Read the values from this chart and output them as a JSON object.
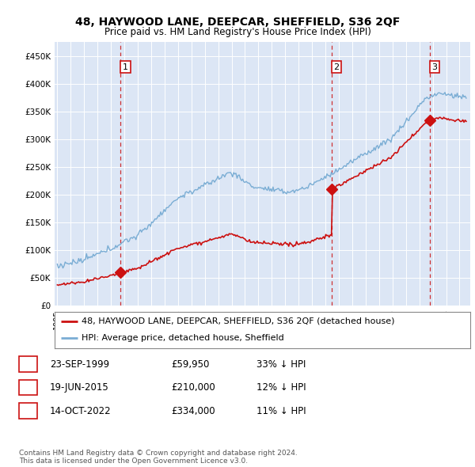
{
  "title": "48, HAYWOOD LANE, DEEPCAR, SHEFFIELD, S36 2QF",
  "subtitle": "Price paid vs. HM Land Registry's House Price Index (HPI)",
  "bg_color": "#dce6f5",
  "hpi_color": "#7aadd4",
  "price_color": "#cc1111",
  "vline_color": "#cc1111",
  "sale_points": [
    {
      "date_num": 1999.73,
      "price": 59950,
      "label": "1"
    },
    {
      "date_num": 2015.46,
      "price": 210000,
      "label": "2"
    },
    {
      "date_num": 2022.79,
      "price": 334000,
      "label": "3"
    }
  ],
  "legend_entries": [
    "48, HAYWOOD LANE, DEEPCAR, SHEFFIELD, S36 2QF (detached house)",
    "HPI: Average price, detached house, Sheffield"
  ],
  "table_rows": [
    {
      "num": "1",
      "date": "23-SEP-1999",
      "price": "£59,950",
      "pct": "33% ↓ HPI"
    },
    {
      "num": "2",
      "date": "19-JUN-2015",
      "price": "£210,000",
      "pct": "12% ↓ HPI"
    },
    {
      "num": "3",
      "date": "14-OCT-2022",
      "price": "£334,000",
      "pct": "11% ↓ HPI"
    }
  ],
  "footnote": "Contains HM Land Registry data © Crown copyright and database right 2024.\nThis data is licensed under the Open Government Licence v3.0.",
  "ylim": [
    0,
    475000
  ],
  "xlim": [
    1994.8,
    2025.8
  ],
  "yticks": [
    0,
    50000,
    100000,
    150000,
    200000,
    250000,
    300000,
    350000,
    400000,
    450000
  ],
  "ytick_labels": [
    "£0",
    "£50K",
    "£100K",
    "£150K",
    "£200K",
    "£250K",
    "£300K",
    "£350K",
    "£400K",
    "£450K"
  ],
  "xticks": [
    1995,
    1996,
    1997,
    1998,
    1999,
    2000,
    2001,
    2002,
    2003,
    2004,
    2005,
    2006,
    2007,
    2008,
    2009,
    2010,
    2011,
    2012,
    2013,
    2014,
    2015,
    2016,
    2017,
    2018,
    2019,
    2020,
    2021,
    2022,
    2023,
    2024,
    2025
  ]
}
